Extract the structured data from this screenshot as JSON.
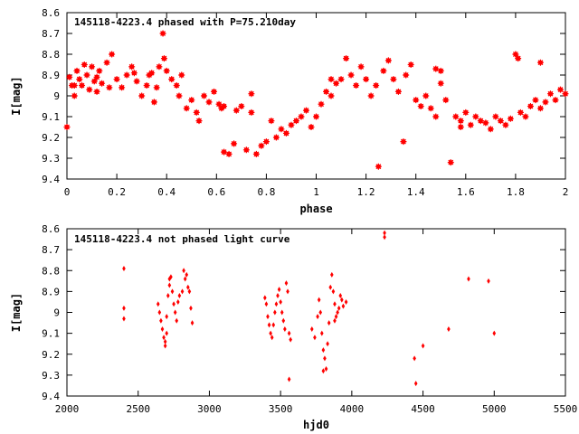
{
  "colors": {
    "marker": "#ff0000",
    "frame": "#000000",
    "background": "#ffffff"
  },
  "chart_data": [
    {
      "type": "scatter",
      "title": "145118-4223.4 phased with P=75.210day",
      "xlabel": "phase",
      "ylabel": "I[mag]",
      "xlim": [
        0,
        2
      ],
      "ylim": [
        8.6,
        9.4
      ],
      "y_inverted": true,
      "xticks": [
        "0",
        "0.2",
        "0.4",
        "0.6",
        "0.8",
        "1",
        "1.2",
        "1.4",
        "1.6",
        "1.8",
        "2"
      ],
      "yticks": [
        "8.6",
        "8.7",
        "8.8",
        "8.9",
        "9",
        "9.1",
        "9.2",
        "9.3",
        "9.4"
      ],
      "grid": false,
      "marker": "asterisk",
      "points": [
        [
          0.0,
          9.15
        ],
        [
          0.01,
          8.91
        ],
        [
          0.02,
          8.95
        ],
        [
          0.03,
          9.0
        ],
        [
          0.04,
          8.88
        ],
        [
          0.05,
          8.92
        ],
        [
          0.06,
          8.95
        ],
        [
          0.07,
          8.85
        ],
        [
          0.08,
          8.9
        ],
        [
          0.09,
          8.97
        ],
        [
          0.1,
          8.86
        ],
        [
          0.11,
          8.93
        ],
        [
          0.12,
          8.98
        ],
        [
          0.13,
          8.88
        ],
        [
          0.14,
          8.94
        ],
        [
          0.16,
          8.84
        ],
        [
          0.18,
          8.8
        ],
        [
          0.2,
          8.92
        ],
        [
          0.22,
          8.96
        ],
        [
          0.24,
          8.9
        ],
        [
          0.26,
          8.86
        ],
        [
          0.28,
          8.93
        ],
        [
          0.3,
          9.0
        ],
        [
          0.32,
          8.95
        ],
        [
          0.34,
          8.89
        ],
        [
          0.35,
          9.03
        ],
        [
          0.36,
          8.96
        ],
        [
          0.37,
          8.86
        ],
        [
          0.385,
          8.7
        ],
        [
          0.39,
          8.82
        ],
        [
          0.4,
          8.88
        ],
        [
          0.42,
          8.92
        ],
        [
          0.44,
          8.95
        ],
        [
          0.45,
          9.0
        ],
        [
          0.46,
          8.9
        ],
        [
          0.48,
          9.06
        ],
        [
          0.5,
          9.02
        ],
        [
          0.52,
          9.08
        ],
        [
          0.53,
          9.12
        ],
        [
          0.55,
          9.0
        ],
        [
          0.57,
          9.03
        ],
        [
          0.59,
          8.98
        ],
        [
          0.61,
          9.04
        ],
        [
          0.62,
          9.06
        ],
        [
          0.63,
          9.27
        ],
        [
          0.65,
          9.28
        ],
        [
          0.67,
          9.23
        ],
        [
          0.68,
          9.07
        ],
        [
          0.7,
          9.05
        ],
        [
          0.72,
          9.26
        ],
        [
          0.74,
          9.08
        ],
        [
          0.76,
          9.28
        ],
        [
          0.78,
          9.24
        ],
        [
          0.8,
          9.22
        ],
        [
          0.82,
          9.12
        ],
        [
          0.84,
          9.2
        ],
        [
          0.86,
          9.16
        ],
        [
          0.88,
          9.18
        ],
        [
          0.9,
          9.14
        ],
        [
          0.92,
          9.12
        ],
        [
          0.94,
          9.1
        ],
        [
          0.96,
          9.07
        ],
        [
          0.98,
          9.15
        ],
        [
          1.0,
          9.1
        ],
        [
          1.02,
          9.04
        ],
        [
          1.04,
          8.98
        ],
        [
          1.06,
          9.0
        ],
        [
          1.08,
          8.94
        ],
        [
          1.1,
          8.92
        ],
        [
          1.12,
          8.82
        ],
        [
          1.14,
          8.9
        ],
        [
          1.16,
          8.95
        ],
        [
          1.18,
          8.86
        ],
        [
          1.2,
          8.92
        ],
        [
          1.22,
          9.0
        ],
        [
          1.24,
          8.95
        ],
        [
          1.25,
          9.34
        ],
        [
          1.27,
          8.88
        ],
        [
          1.29,
          8.83
        ],
        [
          1.31,
          8.92
        ],
        [
          1.33,
          8.98
        ],
        [
          1.35,
          9.22
        ],
        [
          1.36,
          8.9
        ],
        [
          1.38,
          8.85
        ],
        [
          1.4,
          9.02
        ],
        [
          1.42,
          9.05
        ],
        [
          1.44,
          9.0
        ],
        [
          1.46,
          9.06
        ],
        [
          1.48,
          9.1
        ],
        [
          1.5,
          8.88
        ],
        [
          1.52,
          9.02
        ],
        [
          1.54,
          9.32
        ],
        [
          1.56,
          9.1
        ],
        [
          1.58,
          9.12
        ],
        [
          1.6,
          9.08
        ],
        [
          1.62,
          9.14
        ],
        [
          1.64,
          9.1
        ],
        [
          1.66,
          9.12
        ],
        [
          1.68,
          9.13
        ],
        [
          1.7,
          9.16
        ],
        [
          1.72,
          9.1
        ],
        [
          1.74,
          9.12
        ],
        [
          1.76,
          9.14
        ],
        [
          1.78,
          9.11
        ],
        [
          1.8,
          8.8
        ],
        [
          1.82,
          9.08
        ],
        [
          1.84,
          9.1
        ],
        [
          1.86,
          9.05
        ],
        [
          1.88,
          9.02
        ],
        [
          1.9,
          9.06
        ],
        [
          1.92,
          9.03
        ],
        [
          1.94,
          8.99
        ],
        [
          1.96,
          9.02
        ],
        [
          1.98,
          8.97
        ],
        [
          2.0,
          8.99
        ],
        [
          1.81,
          8.82
        ],
        [
          1.48,
          8.87
        ],
        [
          1.06,
          8.92
        ],
        [
          1.5,
          8.94
        ],
        [
          0.03,
          8.95
        ],
        [
          0.27,
          8.89
        ],
        [
          0.17,
          8.96
        ],
        [
          0.63,
          9.05
        ],
        [
          0.74,
          8.99
        ],
        [
          1.58,
          9.15
        ],
        [
          1.9,
          8.84
        ],
        [
          0.12,
          8.91
        ],
        [
          0.33,
          8.9
        ]
      ]
    },
    {
      "type": "scatter",
      "title": "145118-4223.4 not phased light curve",
      "xlabel": "hjd0",
      "ylabel": "I[mag]",
      "xlim": [
        2000,
        5500
      ],
      "ylim": [
        8.6,
        9.4
      ],
      "y_inverted": true,
      "xticks": [
        "2000",
        "2500",
        "3000",
        "3500",
        "4000",
        "4500",
        "5000",
        "5500"
      ],
      "yticks": [
        "8.6",
        "8.7",
        "8.8",
        "8.9",
        "9",
        "9.1",
        "9.2",
        "9.3",
        "9.4"
      ],
      "grid": false,
      "marker": "diamond",
      "points": [
        [
          2400,
          8.79
        ],
        [
          2400,
          8.98
        ],
        [
          2400,
          9.03
        ],
        [
          2640,
          8.96
        ],
        [
          2650,
          9.0
        ],
        [
          2660,
          9.04
        ],
        [
          2670,
          9.08
        ],
        [
          2680,
          9.12
        ],
        [
          2690,
          9.14
        ],
        [
          2700,
          9.1
        ],
        [
          2700,
          9.02
        ],
        [
          2710,
          8.92
        ],
        [
          2720,
          8.84
        ],
        [
          2730,
          8.83
        ],
        [
          2740,
          8.9
        ],
        [
          2750,
          8.96
        ],
        [
          2760,
          9.0
        ],
        [
          2770,
          9.04
        ],
        [
          2780,
          8.95
        ],
        [
          2790,
          8.92
        ],
        [
          2810,
          8.9
        ],
        [
          2830,
          8.84
        ],
        [
          2840,
          8.82
        ],
        [
          2850,
          8.88
        ],
        [
          2860,
          8.9
        ],
        [
          2870,
          8.98
        ],
        [
          2880,
          9.05
        ],
        [
          2720,
          8.87
        ],
        [
          2690,
          9.16
        ],
        [
          2820,
          8.8
        ],
        [
          3390,
          8.93
        ],
        [
          3400,
          8.96
        ],
        [
          3410,
          9.02
        ],
        [
          3420,
          9.06
        ],
        [
          3430,
          9.1
        ],
        [
          3440,
          9.12
        ],
        [
          3450,
          9.06
        ],
        [
          3460,
          9.0
        ],
        [
          3470,
          8.96
        ],
        [
          3480,
          8.92
        ],
        [
          3490,
          8.89
        ],
        [
          3500,
          8.95
        ],
        [
          3510,
          9.0
        ],
        [
          3520,
          9.04
        ],
        [
          3530,
          9.08
        ],
        [
          3540,
          8.86
        ],
        [
          3550,
          8.9
        ],
        [
          3560,
          9.1
        ],
        [
          3570,
          9.13
        ],
        [
          3560,
          9.32
        ],
        [
          3720,
          9.08
        ],
        [
          3740,
          9.12
        ],
        [
          3760,
          9.02
        ],
        [
          3770,
          8.94
        ],
        [
          3780,
          9.0
        ],
        [
          3790,
          9.1
        ],
        [
          3800,
          9.18
        ],
        [
          3810,
          9.22
        ],
        [
          3820,
          9.27
        ],
        [
          3830,
          9.15
        ],
        [
          3840,
          9.05
        ],
        [
          3850,
          8.88
        ],
        [
          3860,
          8.82
        ],
        [
          3870,
          8.9
        ],
        [
          3880,
          8.96
        ],
        [
          3890,
          9.02
        ],
        [
          3900,
          9.0
        ],
        [
          3910,
          8.98
        ],
        [
          3920,
          8.92
        ],
        [
          3930,
          8.94
        ],
        [
          3940,
          8.97
        ],
        [
          3960,
          8.95
        ],
        [
          3800,
          9.28
        ],
        [
          3880,
          9.04
        ],
        [
          4230,
          8.62
        ],
        [
          4230,
          8.64
        ],
        [
          4440,
          9.22
        ],
        [
          4450,
          9.34
        ],
        [
          4500,
          9.16
        ],
        [
          4680,
          9.08
        ],
        [
          4820,
          8.84
        ],
        [
          4960,
          8.85
        ],
        [
          5000,
          9.1
        ]
      ]
    }
  ]
}
